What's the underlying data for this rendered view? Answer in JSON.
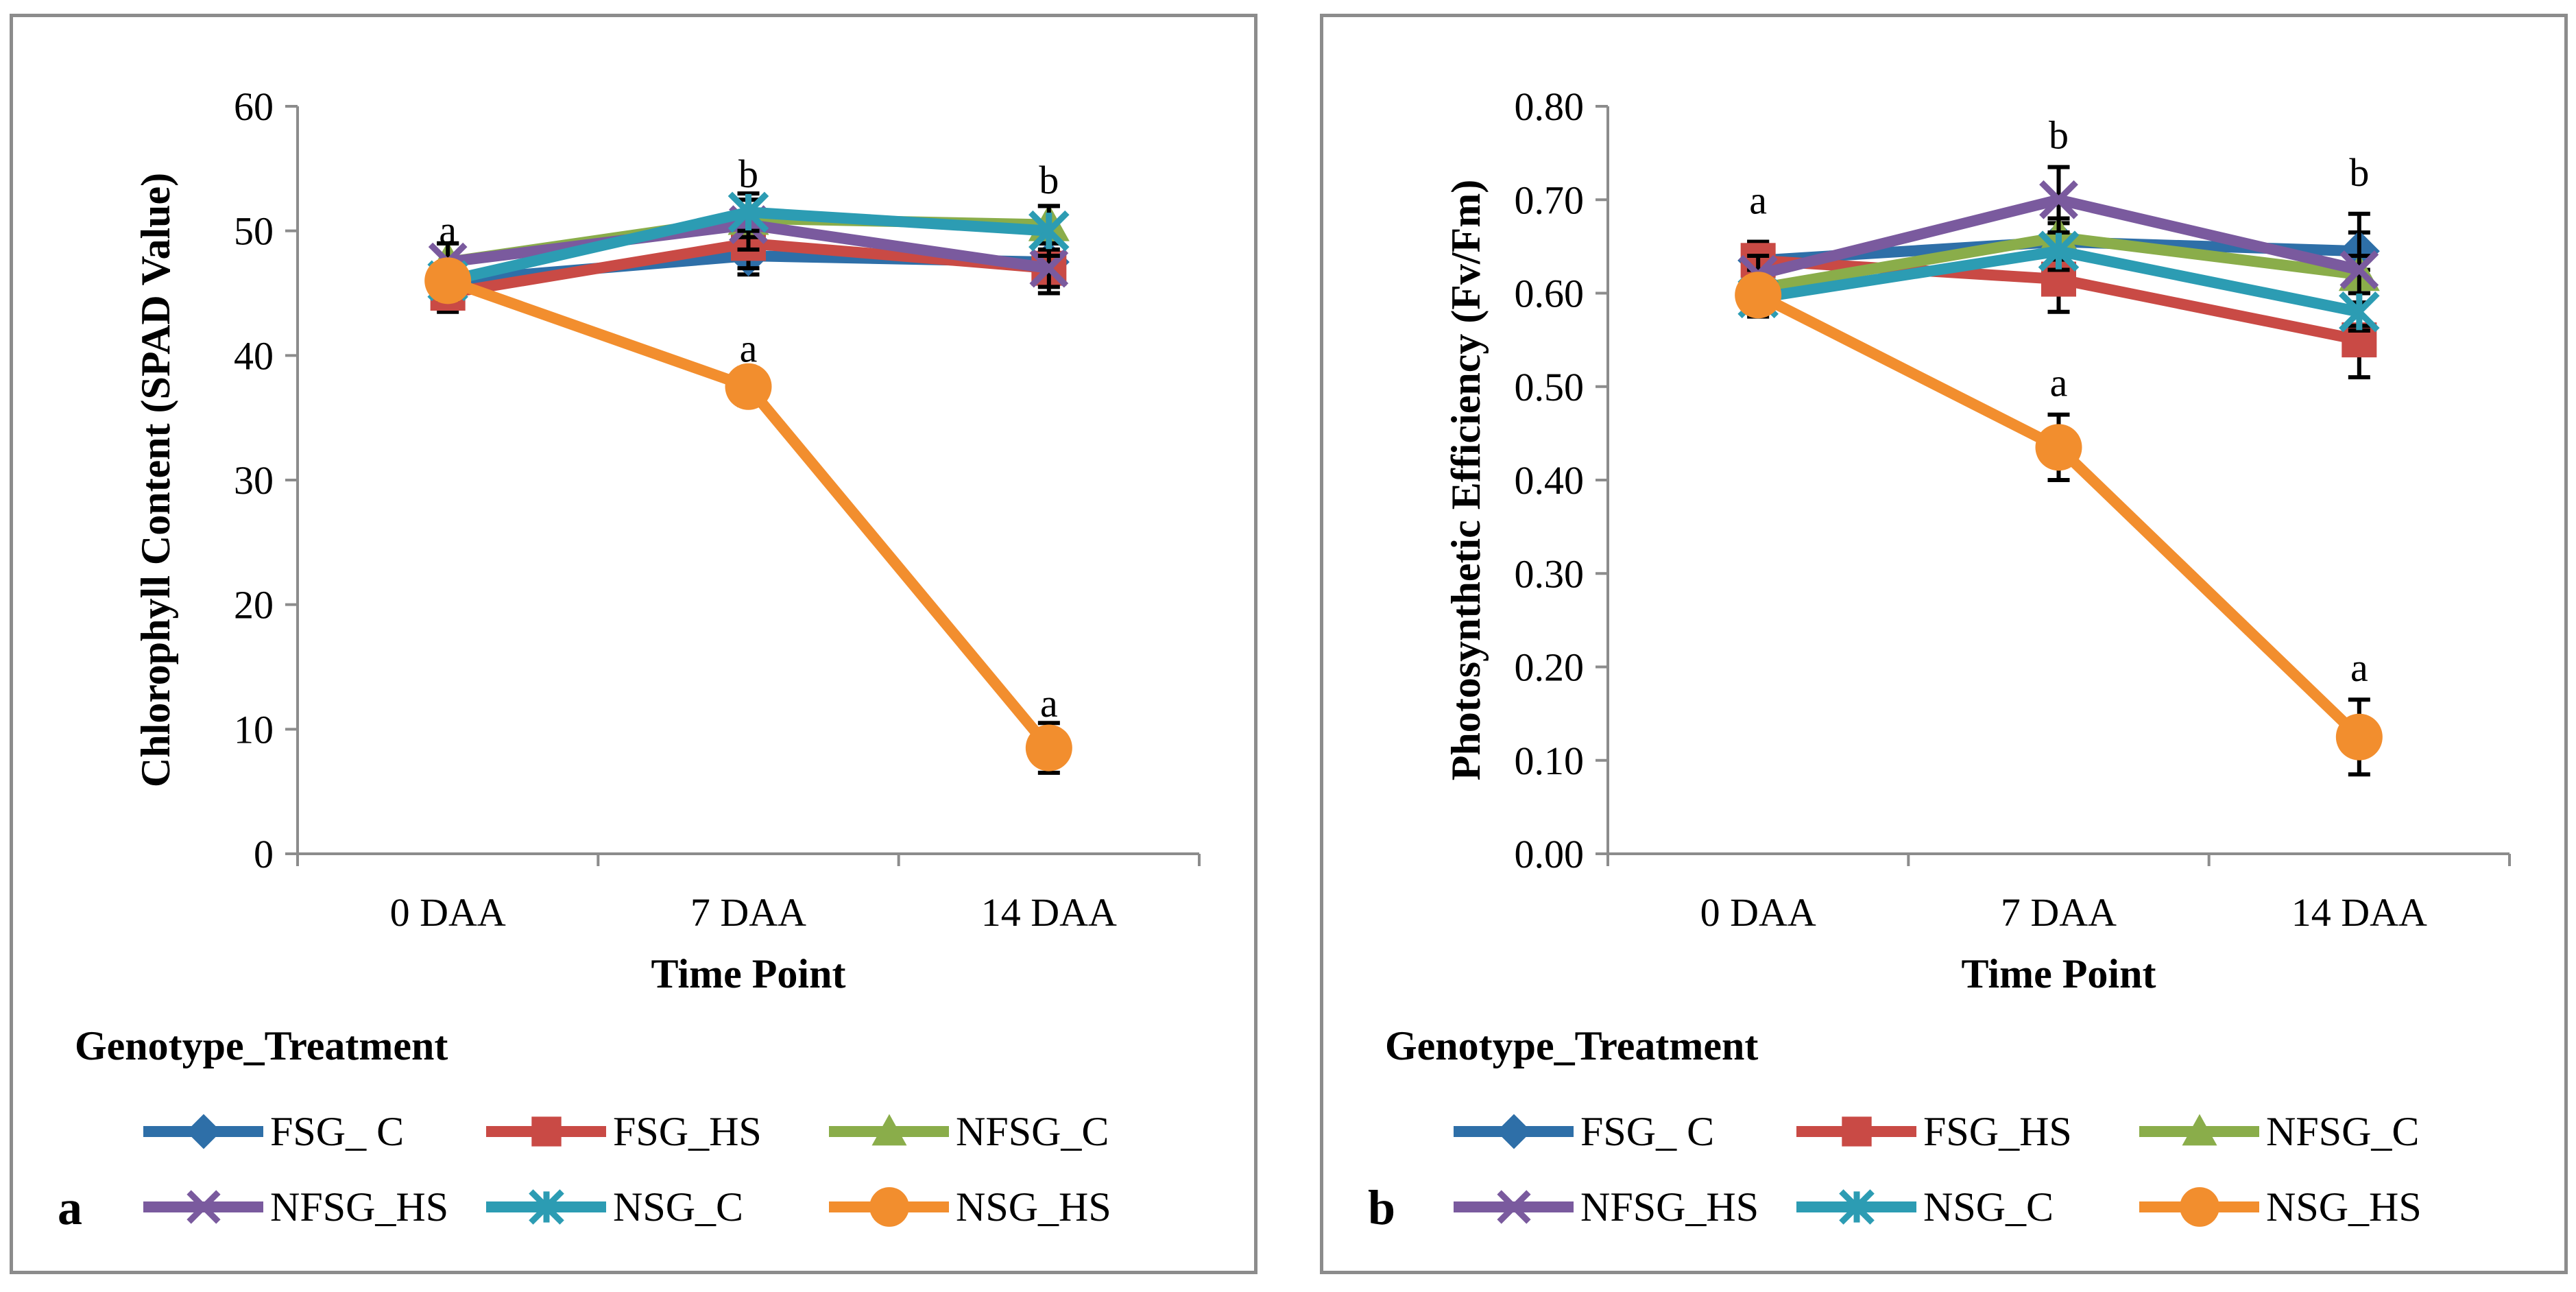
{
  "legend": {
    "title": "Genotype_Treatment",
    "series": [
      {
        "name": "FSG_ C",
        "color": "#2e6fa8",
        "marker": "diamond"
      },
      {
        "name": "FSG_HS",
        "color": "#c94a45",
        "marker": "square"
      },
      {
        "name": "NFSG_C",
        "color": "#8aad4a",
        "marker": "triangle"
      },
      {
        "name": "NFSG_HS",
        "color": "#7a5a9e",
        "marker": "x"
      },
      {
        "name": "NSG_C",
        "color": "#2c9cb3",
        "marker": "star"
      },
      {
        "name": "NSG_HS",
        "color": "#f28e2e",
        "marker": "circle"
      }
    ]
  },
  "chart_data": [
    {
      "type": "line",
      "panel_label": "a",
      "xlabel": "Time Point",
      "ylabel": "Chlorophyll Content (SPAD Value)",
      "categories": [
        "0 DAA",
        "7 DAA",
        "14 DAA"
      ],
      "ylim": [
        0,
        60
      ],
      "yticks": [
        "0",
        "10",
        "20",
        "30",
        "40",
        "50",
        "60"
      ],
      "ytick_values": [
        0,
        10,
        20,
        30,
        40,
        50,
        60
      ],
      "series": [
        {
          "name": "FSG_ C",
          "values": [
            46.0,
            48.0,
            47.5
          ],
          "errors": [
            1.5,
            1.5,
            1.5
          ]
        },
        {
          "name": "FSG_HS",
          "values": [
            45.0,
            49.0,
            47.0
          ],
          "errors": [
            1.5,
            2.0,
            2.0
          ]
        },
        {
          "name": "NFSG_C",
          "values": [
            47.5,
            51.0,
            50.5
          ],
          "errors": [
            1.5,
            1.5,
            1.5
          ]
        },
        {
          "name": "NFSG_HS",
          "values": [
            47.5,
            50.5,
            47.0
          ],
          "errors": [
            1.5,
            2.0,
            1.5
          ]
        },
        {
          "name": "NSG_C",
          "values": [
            46.0,
            51.5,
            50.0
          ],
          "errors": [
            1.5,
            1.5,
            2.0
          ]
        },
        {
          "name": "NSG_HS",
          "values": [
            46.0,
            37.5,
            8.5
          ],
          "errors": [
            1.5,
            1.5,
            2.0
          ]
        }
      ],
      "annotations": [
        {
          "category": "0 DAA",
          "value": 49.0,
          "text": "a"
        },
        {
          "category": "7 DAA",
          "value": 53.5,
          "text": "b"
        },
        {
          "category": "7 DAA",
          "value": 39.5,
          "text": "a"
        },
        {
          "category": "14 DAA",
          "value": 53.0,
          "text": "b"
        },
        {
          "category": "14 DAA",
          "value": 11.0,
          "text": "a"
        }
      ]
    },
    {
      "type": "line",
      "panel_label": "b",
      "xlabel": "Time Point",
      "ylabel": "Photosynthetic Efficiency (Fv/Fm)",
      "categories": [
        "0 DAA",
        "7 DAA",
        "14 DAA"
      ],
      "ylim": [
        0,
        0.8
      ],
      "yticks": [
        "0.00",
        "0.10",
        "0.20",
        "0.30",
        "0.40",
        "0.50",
        "0.60",
        "0.70",
        "0.80"
      ],
      "ytick_values": [
        0,
        0.1,
        0.2,
        0.3,
        0.4,
        0.5,
        0.6,
        0.7,
        0.8
      ],
      "series": [
        {
          "name": "FSG_ C",
          "values": [
            0.635,
            0.655,
            0.645
          ],
          "errors": [
            0.02,
            0.02,
            0.02
          ]
        },
        {
          "name": "FSG_HS",
          "values": [
            0.635,
            0.615,
            0.55
          ],
          "errors": [
            0.02,
            0.035,
            0.04
          ]
        },
        {
          "name": "NFSG_C",
          "values": [
            0.605,
            0.66,
            0.62
          ],
          "errors": [
            0.02,
            0.02,
            0.02
          ]
        },
        {
          "name": "NFSG_HS",
          "values": [
            0.62,
            0.7,
            0.625
          ],
          "errors": [
            0.02,
            0.035,
            0.06
          ]
        },
        {
          "name": "NSG_C",
          "values": [
            0.595,
            0.645,
            0.58
          ],
          "errors": [
            0.02,
            0.02,
            0.02
          ]
        },
        {
          "name": "NSG_HS",
          "values": [
            0.598,
            0.435,
            0.125
          ],
          "errors": [
            0.02,
            0.035,
            0.04
          ]
        }
      ],
      "annotations": [
        {
          "category": "0 DAA",
          "value": 0.685,
          "text": "a"
        },
        {
          "category": "7 DAA",
          "value": 0.755,
          "text": "b"
        },
        {
          "category": "7 DAA",
          "value": 0.49,
          "text": "a"
        },
        {
          "category": "14 DAA",
          "value": 0.715,
          "text": "b"
        },
        {
          "category": "14 DAA",
          "value": 0.185,
          "text": "a"
        }
      ]
    }
  ]
}
